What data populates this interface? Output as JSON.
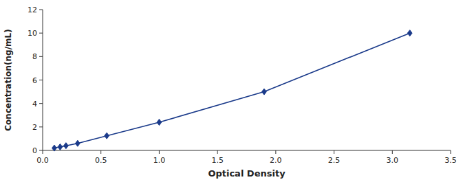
{
  "chart_data": {
    "type": "line",
    "x": [
      0.1,
      0.15,
      0.2,
      0.3,
      0.55,
      1.0,
      1.9,
      3.15
    ],
    "values": [
      0.2,
      0.3,
      0.4,
      0.6,
      1.25,
      2.4,
      5.0,
      10.0
    ],
    "xlabel": "Optical Density",
    "ylabel": "Concentration(ng/mL)",
    "xlim": [
      0,
      3.5
    ],
    "ylim": [
      0,
      12
    ],
    "xticks": [
      {
        "value": 0,
        "label": "0.0"
      },
      0.5,
      {
        "value": 1.0,
        "label": "1.0"
      },
      1.5,
      {
        "value": 2.0,
        "label": "2.0"
      },
      2.5,
      {
        "value": 3.0,
        "label": "3.0"
      },
      3.5
    ],
    "yticks": [
      0,
      2,
      4,
      6,
      8,
      10,
      12
    ],
    "color": "#1a3a8a",
    "marker": "diamond",
    "grid": false
  }
}
